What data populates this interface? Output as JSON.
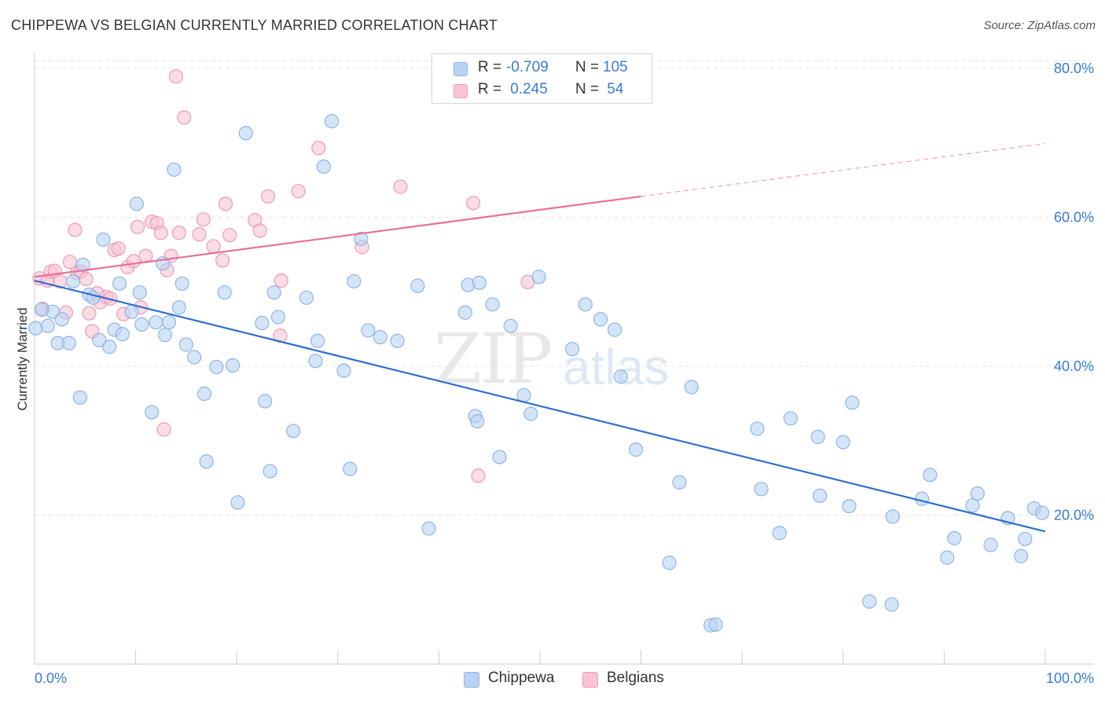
{
  "title": "CHIPPEWA VS BELGIAN CURRENTLY MARRIED CORRELATION CHART",
  "source": "Source: ZipAtlas.com",
  "watermark": {
    "zip": "ZIP",
    "atlas": "atlas"
  },
  "legend": {
    "r_label": "R =",
    "n_label": "N =",
    "rows": [
      {
        "name": "Chippewa",
        "r": "-0.709",
        "n": "105"
      },
      {
        "name": "Belgians",
        "r": " 0.245",
        "n": " 54"
      }
    ]
  },
  "colors": {
    "chippewa_fill": "#b9d3f3",
    "chippewa_stroke": "#8fb4e6",
    "chippewa_line": "#2f6fcf",
    "belgians_fill": "#f7c4d4",
    "belgians_stroke": "#ee9ab5",
    "belgians_line": "#e8709a",
    "tick_text": "#3a7bd5"
  },
  "chart_data": {
    "type": "scatter",
    "title": "CHIPPEWA VS BELGIAN CURRENTLY MARRIED CORRELATION CHART",
    "xlabel": "",
    "ylabel": "Currently Married",
    "xlim": [
      0,
      100
    ],
    "ylim": [
      0,
      82
    ],
    "x_tick_labels": [
      "0.0%",
      "100.0%"
    ],
    "y_ticks": [
      20,
      40,
      60,
      80
    ],
    "y_tick_labels": [
      "20.0%",
      "40.0%",
      "60.0%",
      "80.0%"
    ],
    "grid": true,
    "legend_position": "top-center",
    "series": [
      {
        "name": "Chippewa",
        "trend": {
          "x0": 0,
          "y0": 51.5,
          "x1": 100,
          "y1": 17.8
        },
        "points": [
          [
            0.1,
            45.1
          ],
          [
            0.7,
            47.6
          ],
          [
            1.3,
            45.4
          ],
          [
            1.8,
            47.3
          ],
          [
            2.3,
            43.1
          ],
          [
            2.7,
            46.3
          ],
          [
            3.4,
            43.1
          ],
          [
            3.8,
            51.4
          ],
          [
            4.5,
            35.8
          ],
          [
            4.8,
            53.6
          ],
          [
            5.4,
            49.6
          ],
          [
            5.8,
            49.2
          ],
          [
            6.4,
            43.5
          ],
          [
            6.8,
            57.0
          ],
          [
            7.4,
            42.6
          ],
          [
            7.9,
            44.9
          ],
          [
            8.4,
            51.1
          ],
          [
            8.7,
            44.3
          ],
          [
            9.6,
            47.3
          ],
          [
            10.1,
            61.8
          ],
          [
            10.4,
            49.9
          ],
          [
            10.6,
            45.6
          ],
          [
            11.6,
            33.8
          ],
          [
            12.0,
            45.9
          ],
          [
            12.7,
            53.8
          ],
          [
            12.9,
            44.2
          ],
          [
            13.3,
            45.9
          ],
          [
            13.8,
            66.4
          ],
          [
            14.3,
            47.9
          ],
          [
            14.6,
            51.1
          ],
          [
            15.0,
            42.9
          ],
          [
            15.8,
            41.2
          ],
          [
            16.8,
            36.3
          ],
          [
            17.0,
            27.2
          ],
          [
            18.0,
            39.9
          ],
          [
            18.8,
            49.9
          ],
          [
            19.6,
            40.1
          ],
          [
            20.1,
            21.7
          ],
          [
            20.9,
            71.3
          ],
          [
            22.5,
            45.8
          ],
          [
            22.8,
            35.3
          ],
          [
            23.3,
            25.9
          ],
          [
            23.7,
            49.9
          ],
          [
            24.1,
            46.6
          ],
          [
            25.6,
            31.3
          ],
          [
            26.9,
            49.2
          ],
          [
            27.8,
            40.7
          ],
          [
            28.0,
            43.4
          ],
          [
            28.6,
            66.8
          ],
          [
            29.4,
            72.9
          ],
          [
            30.6,
            39.4
          ],
          [
            31.2,
            26.2
          ],
          [
            31.6,
            51.4
          ],
          [
            32.3,
            57.1
          ],
          [
            33.0,
            44.8
          ],
          [
            34.2,
            43.9
          ],
          [
            35.9,
            43.4
          ],
          [
            37.9,
            50.8
          ],
          [
            39.0,
            18.2
          ],
          [
            42.6,
            47.2
          ],
          [
            42.9,
            50.9
          ],
          [
            43.6,
            33.3
          ],
          [
            43.8,
            32.6
          ],
          [
            45.3,
            48.3
          ],
          [
            46.0,
            27.8
          ],
          [
            47.1,
            45.4
          ],
          [
            48.4,
            36.1
          ],
          [
            49.1,
            33.6
          ],
          [
            49.9,
            52.0
          ],
          [
            53.2,
            42.3
          ],
          [
            54.5,
            48.3
          ],
          [
            56.0,
            46.3
          ],
          [
            57.4,
            44.9
          ],
          [
            58.0,
            38.6
          ],
          [
            59.5,
            28.8
          ],
          [
            62.8,
            13.6
          ],
          [
            63.8,
            24.4
          ],
          [
            65.0,
            37.2
          ],
          [
            66.9,
            5.2
          ],
          [
            67.4,
            5.3
          ],
          [
            71.5,
            31.6
          ],
          [
            71.9,
            23.5
          ],
          [
            73.7,
            17.6
          ],
          [
            74.8,
            33.0
          ],
          [
            77.5,
            30.5
          ],
          [
            77.7,
            22.6
          ],
          [
            80.0,
            29.8
          ],
          [
            80.6,
            21.2
          ],
          [
            80.9,
            35.1
          ],
          [
            82.6,
            8.4
          ],
          [
            84.8,
            8.0
          ],
          [
            84.9,
            19.8
          ],
          [
            87.8,
            22.2
          ],
          [
            88.6,
            25.4
          ],
          [
            90.3,
            14.3
          ],
          [
            91.0,
            16.9
          ],
          [
            92.8,
            21.3
          ],
          [
            93.3,
            22.9
          ],
          [
            94.6,
            16.0
          ],
          [
            96.3,
            19.6
          ],
          [
            97.6,
            14.5
          ],
          [
            98.0,
            16.8
          ],
          [
            98.9,
            20.9
          ],
          [
            99.7,
            20.3
          ],
          [
            44.0,
            51.2
          ]
        ]
      },
      {
        "name": "Belgians",
        "trend": {
          "x0": 0,
          "y0": 52.0,
          "x1": 60,
          "y1": 62.8,
          "dashed_to_x": 100,
          "dashed_to_y": 69.9
        },
        "points": [
          [
            0.5,
            51.8
          ],
          [
            0.8,
            47.7
          ],
          [
            1.3,
            51.5
          ],
          [
            1.6,
            52.7
          ],
          [
            2.0,
            52.8
          ],
          [
            2.5,
            51.4
          ],
          [
            3.1,
            47.2
          ],
          [
            3.5,
            54.0
          ],
          [
            4.0,
            58.3
          ],
          [
            4.2,
            52.5
          ],
          [
            4.6,
            52.7
          ],
          [
            5.1,
            51.7
          ],
          [
            5.4,
            47.1
          ],
          [
            5.7,
            44.7
          ],
          [
            6.2,
            49.8
          ],
          [
            6.5,
            48.6
          ],
          [
            7.1,
            49.3
          ],
          [
            7.5,
            49.1
          ],
          [
            7.9,
            55.6
          ],
          [
            8.3,
            55.8
          ],
          [
            8.8,
            47.0
          ],
          [
            9.2,
            53.3
          ],
          [
            9.8,
            54.1
          ],
          [
            10.2,
            58.7
          ],
          [
            10.5,
            47.9
          ],
          [
            11.0,
            54.8
          ],
          [
            11.6,
            59.4
          ],
          [
            12.1,
            59.2
          ],
          [
            12.5,
            57.9
          ],
          [
            13.1,
            52.9
          ],
          [
            13.5,
            54.8
          ],
          [
            14.0,
            78.9
          ],
          [
            14.3,
            57.9
          ],
          [
            14.8,
            73.4
          ],
          [
            16.3,
            57.7
          ],
          [
            16.7,
            59.7
          ],
          [
            17.7,
            56.1
          ],
          [
            18.6,
            54.2
          ],
          [
            18.9,
            61.8
          ],
          [
            19.3,
            57.6
          ],
          [
            21.8,
            59.6
          ],
          [
            22.3,
            58.2
          ],
          [
            23.1,
            62.8
          ],
          [
            24.3,
            44.1
          ],
          [
            24.4,
            51.5
          ],
          [
            26.1,
            63.5
          ],
          [
            28.1,
            69.3
          ],
          [
            32.4,
            56.0
          ],
          [
            36.2,
            64.1
          ],
          [
            43.4,
            61.9
          ],
          [
            43.9,
            25.3
          ],
          [
            48.8,
            51.3
          ],
          [
            52.7,
            77.6
          ],
          [
            12.8,
            31.5
          ]
        ]
      }
    ]
  }
}
